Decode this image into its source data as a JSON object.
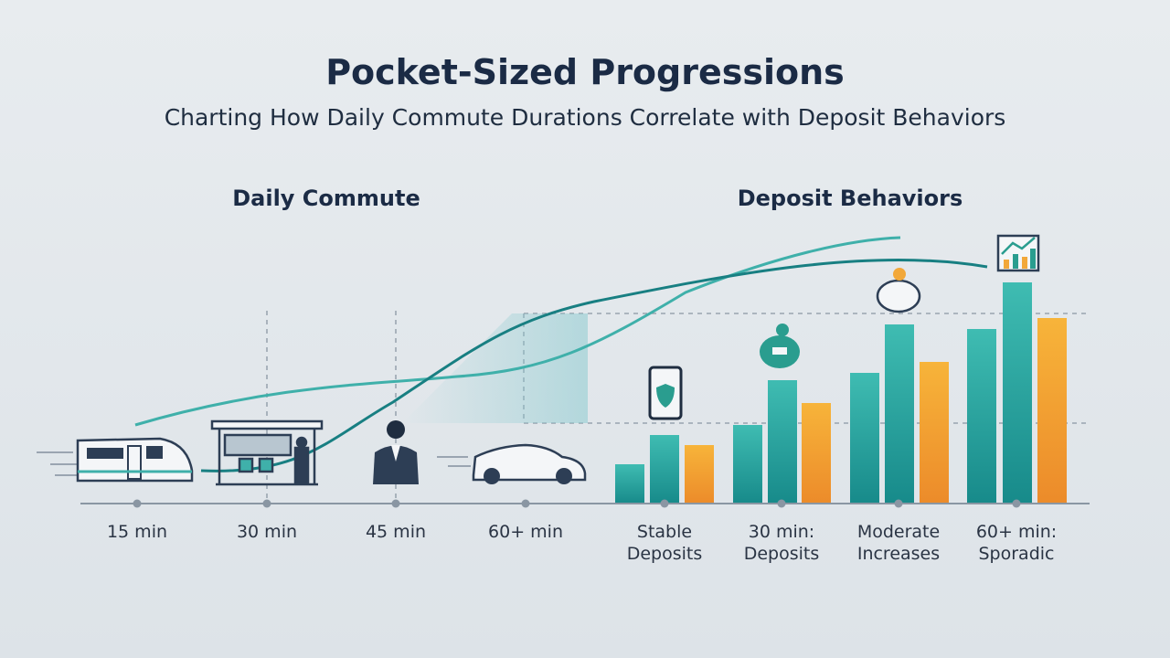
{
  "header": {
    "title": "Pocket-Sized Progressions",
    "subtitle": "Charting How Daily Commute Durations Correlate with Deposit Behaviors"
  },
  "sections": [
    {
      "heading": "Daily Commute",
      "labels": [
        "15 min",
        "30 min",
        "45 min",
        "60+ min"
      ]
    },
    {
      "heading": "Deposit Behaviors",
      "labels": [
        [
          "Stable",
          "Deposits"
        ],
        [
          "30 min:",
          "Deposits"
        ],
        [
          "Moderate",
          "Increases"
        ],
        [
          "60+ min:",
          "Sporadic"
        ]
      ]
    }
  ]
}
